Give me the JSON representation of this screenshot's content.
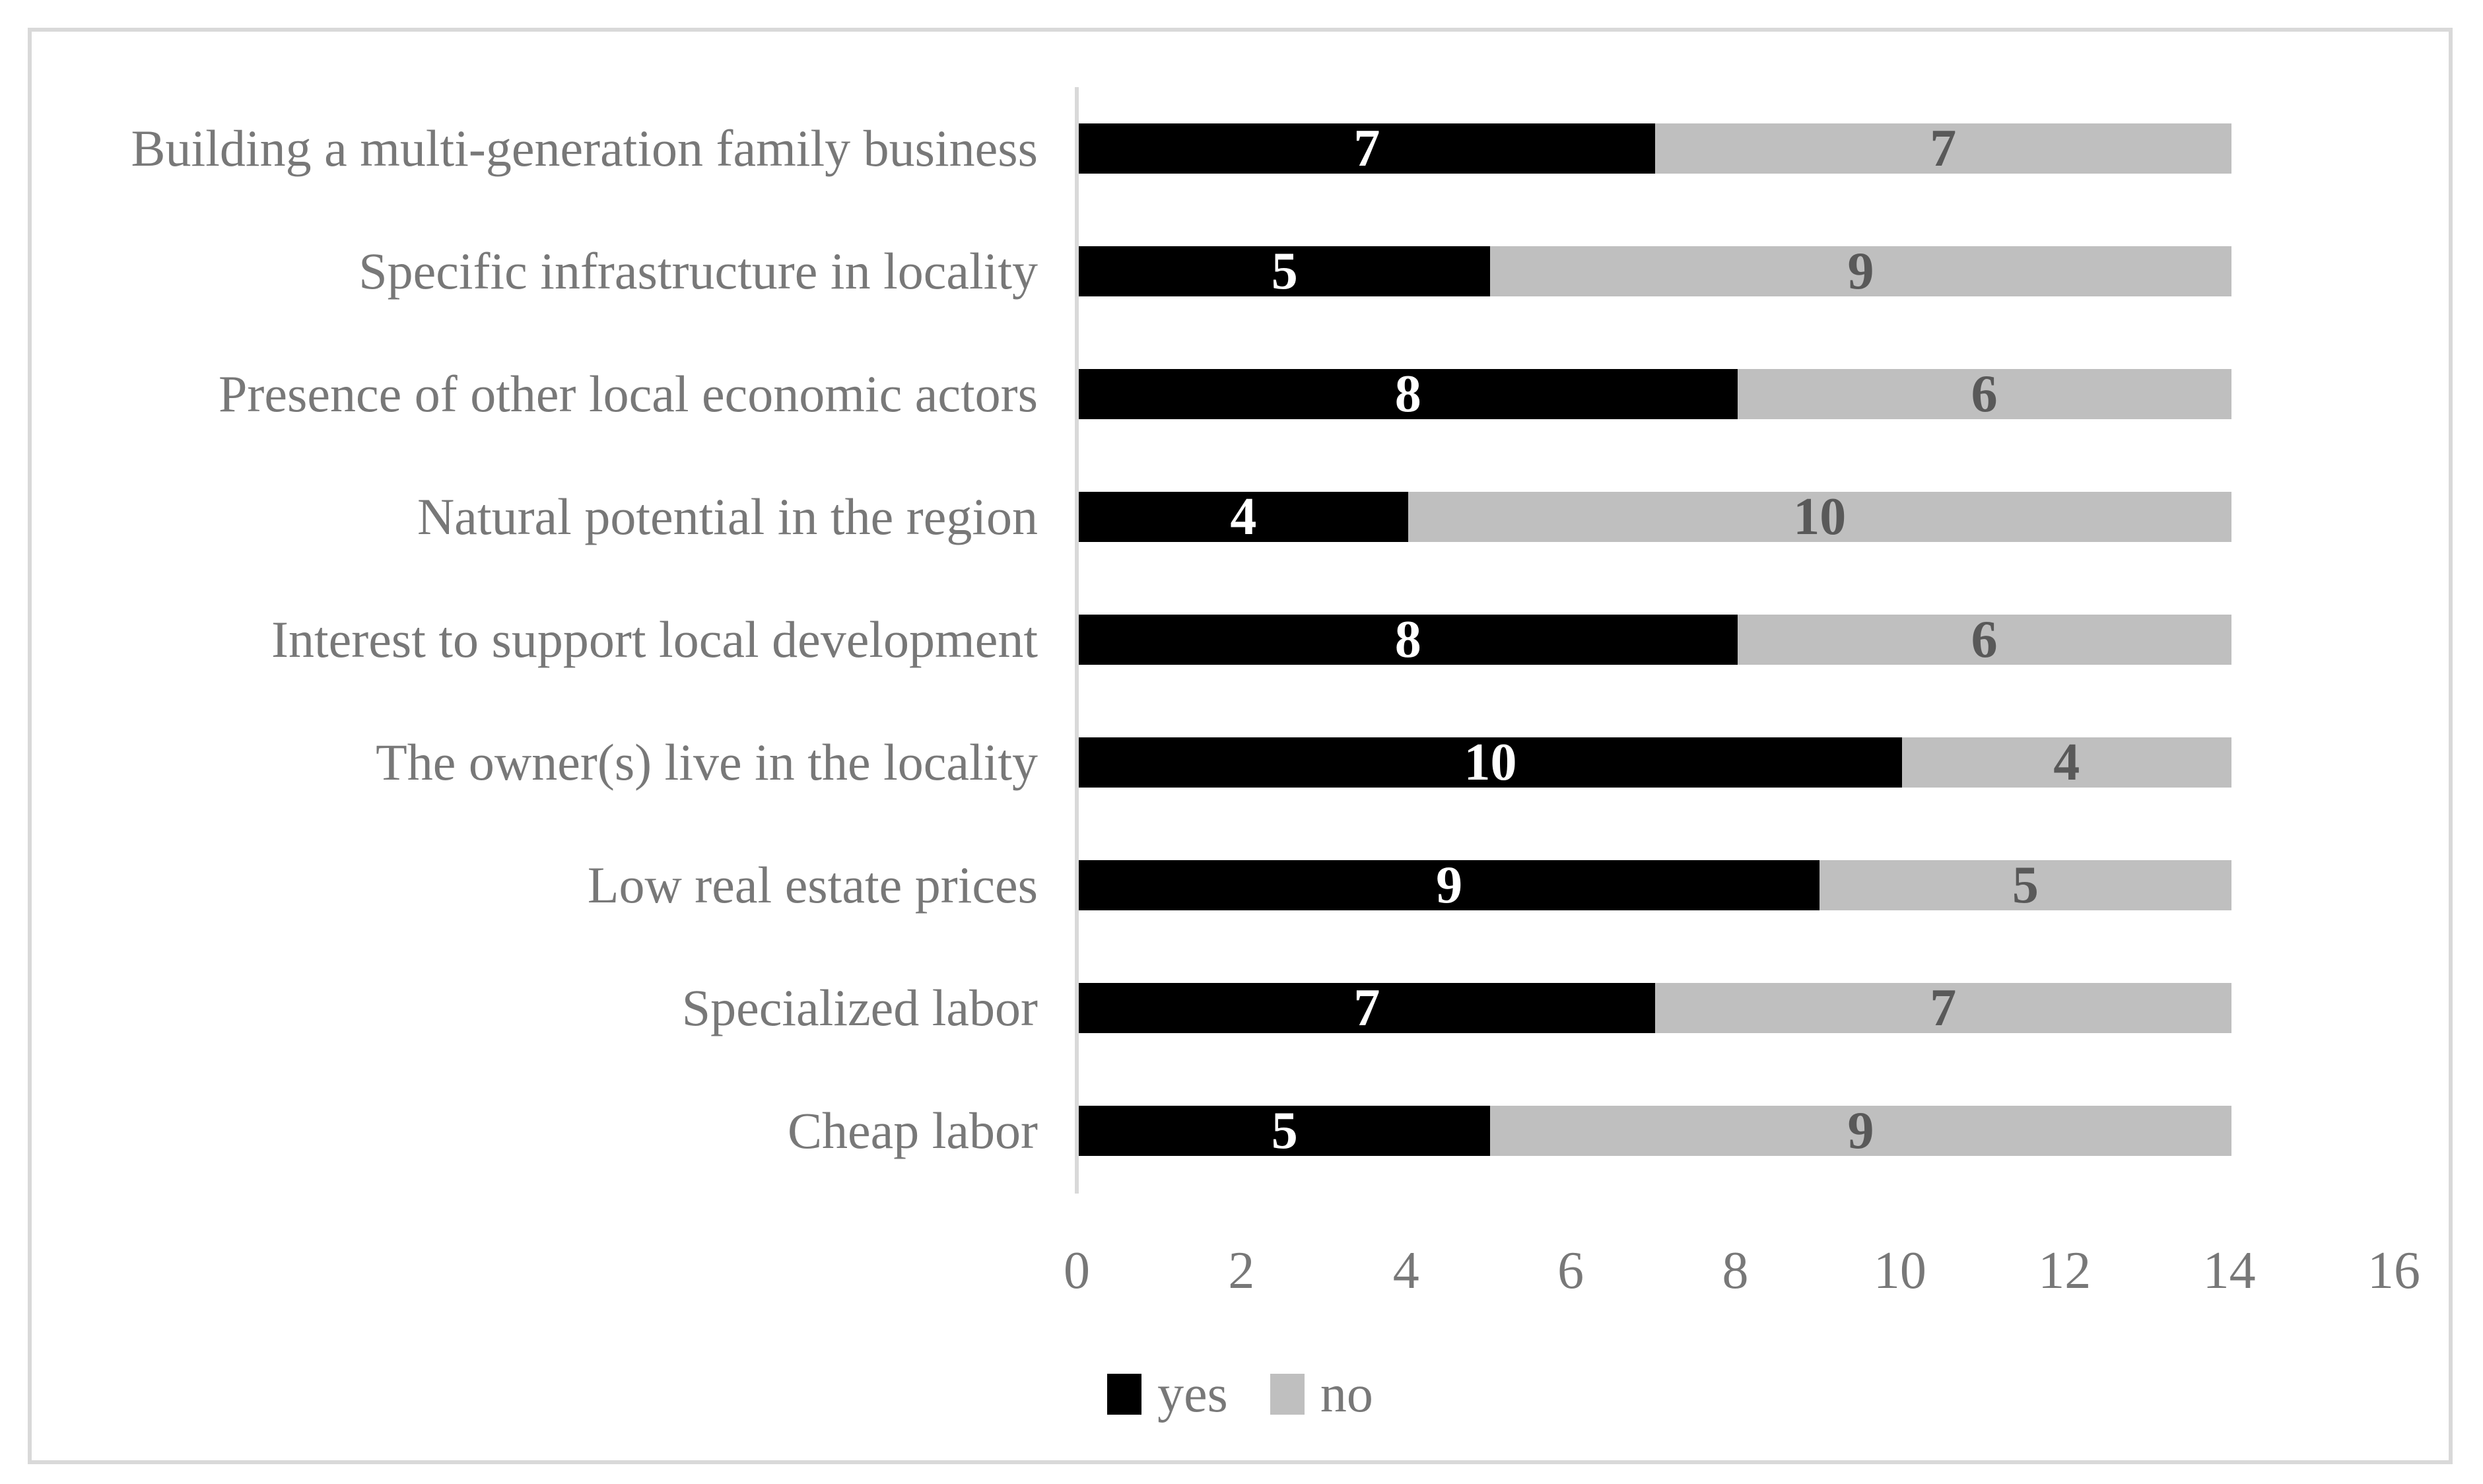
{
  "chart_data": {
    "type": "bar",
    "orientation": "horizontal",
    "stacked": true,
    "title": "",
    "categories": [
      "Building a multi-generation family business",
      "Specific infrastructure in locality",
      "Presence of other local economic actors",
      "Natural potential in the region",
      "Interest to support local development",
      "The owner(s) live in the locality",
      "Low real estate prices",
      "Specialized labor",
      "Cheap labor"
    ],
    "series": [
      {
        "name": "yes",
        "color": "#000000",
        "label_color": "#ffffff",
        "values": [
          7,
          5,
          8,
          4,
          8,
          10,
          9,
          7,
          5
        ]
      },
      {
        "name": "no",
        "color": "#bfbfbf",
        "label_color": "#595959",
        "values": [
          7,
          9,
          6,
          10,
          6,
          4,
          5,
          7,
          9
        ]
      }
    ],
    "xlim": [
      0,
      16
    ],
    "x_ticks": [
      0,
      2,
      4,
      6,
      8,
      10,
      12,
      14,
      16
    ],
    "grid": false,
    "legend": {
      "position": "bottom-center",
      "items": [
        {
          "label": "yes",
          "color": "#000000"
        },
        {
          "label": "no",
          "color": "#bfbfbf"
        }
      ]
    },
    "colors": {
      "axis_line": "#d9d9d9",
      "frame_border": "#d9d9d9",
      "text": "#787878",
      "background": "#ffffff"
    }
  }
}
